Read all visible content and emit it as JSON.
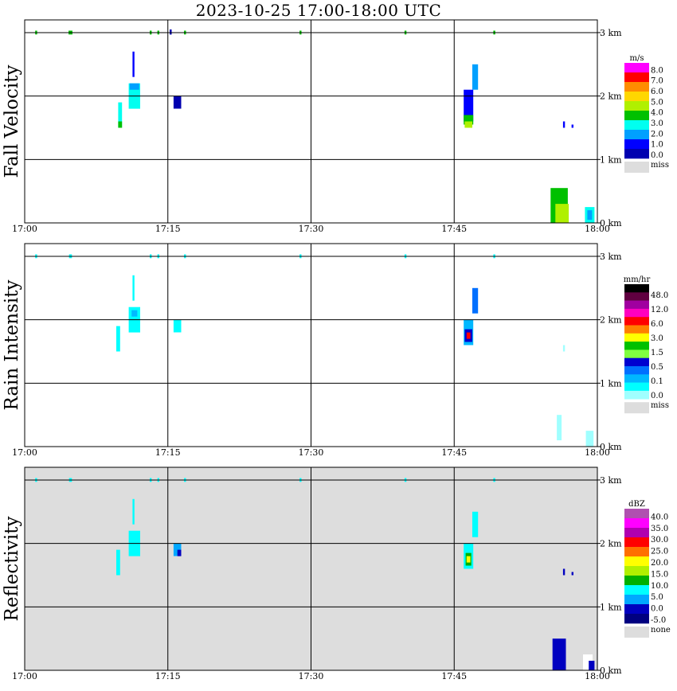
{
  "title": "2023-10-25   17:00-18:00 UTC",
  "chart_data": [
    {
      "type": "heatmap",
      "ylabel": "Fall Velocity",
      "x_range": [
        "17:00",
        "18:00"
      ],
      "x_ticks": [
        "17:00",
        "17:15",
        "17:30",
        "17:45",
        "18:00"
      ],
      "y_range": [
        0,
        3.2
      ],
      "y_ticks": [
        "0 km",
        "1 km",
        "2 km",
        "3 km"
      ],
      "grid": true,
      "background": "#ffffff",
      "colorbar": {
        "unit": "m/s",
        "colors": [
          "#ff00ff",
          "#ff0000",
          "#ff8c00",
          "#ffd700",
          "#b0f000",
          "#00c000",
          "#00fff0",
          "#00a0ff",
          "#0000ff",
          "#0000b0"
        ],
        "labels": [
          "8.0",
          "7.0",
          "6.0",
          "5.0",
          "4.0",
          "3.0",
          "2.0",
          "1.0",
          "0.0"
        ],
        "miss_label": "miss",
        "miss_color": "#dddddd"
      },
      "echoes": [
        {
          "t": 10.0,
          "z1": 1.5,
          "z2": 1.9,
          "w": 0.4,
          "c": "#00fff0"
        },
        {
          "t": 10.0,
          "z1": 1.5,
          "z2": 1.6,
          "w": 0.4,
          "c": "#00c000"
        },
        {
          "t": 11.5,
          "z1": 1.8,
          "z2": 2.2,
          "w": 1.2,
          "c": "#00fff0"
        },
        {
          "t": 11.5,
          "z1": 2.1,
          "z2": 2.2,
          "w": 1.0,
          "c": "#00a0ff"
        },
        {
          "t": 11.4,
          "z1": 2.3,
          "z2": 2.7,
          "w": 0.2,
          "c": "#0000ff"
        },
        {
          "t": 16.0,
          "z1": 1.8,
          "z2": 2.0,
          "w": 0.8,
          "c": "#0000b0"
        },
        {
          "t": 46.5,
          "z1": 1.6,
          "z2": 2.1,
          "w": 1.0,
          "c": "#0000ff"
        },
        {
          "t": 46.5,
          "z1": 1.55,
          "z2": 1.7,
          "w": 1.0,
          "c": "#00c000"
        },
        {
          "t": 46.5,
          "z1": 1.5,
          "z2": 1.6,
          "w": 0.8,
          "c": "#b0f000"
        },
        {
          "t": 47.2,
          "z1": 2.1,
          "z2": 2.5,
          "w": 0.6,
          "c": "#00a0ff"
        },
        {
          "t": 56.0,
          "z1": 0.0,
          "z2": 0.55,
          "w": 1.8,
          "c": "#00c000"
        },
        {
          "t": 56.3,
          "z1": 0.0,
          "z2": 0.3,
          "w": 1.4,
          "c": "#b0f000"
        },
        {
          "t": 59.2,
          "z1": 0.0,
          "z2": 0.25,
          "w": 1.0,
          "c": "#00fff0"
        },
        {
          "t": 59.2,
          "z1": 0.05,
          "z2": 0.2,
          "w": 0.5,
          "c": "#00a0ff"
        },
        {
          "t": 56.5,
          "z1": 1.5,
          "z2": 1.6,
          "w": 0.2,
          "c": "#0000ff"
        },
        {
          "t": 57.4,
          "z1": 1.5,
          "z2": 1.55,
          "w": 0.2,
          "c": "#0000ff"
        },
        {
          "t": 1.2,
          "z1": 2.97,
          "z2": 3.03,
          "w": 0.2,
          "c": "#00c000"
        },
        {
          "t": 4.8,
          "z1": 2.97,
          "z2": 3.03,
          "w": 0.4,
          "c": "#00c000"
        },
        {
          "t": 13.2,
          "z1": 2.97,
          "z2": 3.03,
          "w": 0.2,
          "c": "#00c000"
        },
        {
          "t": 14.0,
          "z1": 2.97,
          "z2": 3.03,
          "w": 0.2,
          "c": "#00c000"
        },
        {
          "t": 15.3,
          "z1": 2.97,
          "z2": 3.05,
          "w": 0.2,
          "c": "#0000b0"
        },
        {
          "t": 16.8,
          "z1": 2.97,
          "z2": 3.03,
          "w": 0.2,
          "c": "#00c000"
        },
        {
          "t": 28.9,
          "z1": 2.97,
          "z2": 3.03,
          "w": 0.2,
          "c": "#00c000"
        },
        {
          "t": 39.9,
          "z1": 2.97,
          "z2": 3.03,
          "w": 0.2,
          "c": "#00c000"
        },
        {
          "t": 49.2,
          "z1": 2.97,
          "z2": 3.03,
          "w": 0.2,
          "c": "#00c000"
        }
      ]
    },
    {
      "type": "heatmap",
      "ylabel": "Rain Intensity",
      "x_range": [
        "17:00",
        "18:00"
      ],
      "x_ticks": [
        "17:00",
        "17:15",
        "17:30",
        "17:45",
        "18:00"
      ],
      "y_range": [
        0,
        3.2
      ],
      "y_ticks": [
        "0 km",
        "1 km",
        "2 km",
        "3 km"
      ],
      "grid": true,
      "background": "#ffffff",
      "colorbar": {
        "unit": "mm/hr",
        "colors": [
          "#000000",
          "#600040",
          "#a000a0",
          "#ff00c0",
          "#ff0000",
          "#ff8000",
          "#ffff00",
          "#00c000",
          "#80ff40",
          "#0000d0",
          "#0070ff",
          "#00b8ff",
          "#00ffff",
          "#a0ffff"
        ],
        "labels": [
          "48.0",
          "12.0",
          "6.0",
          "3.0",
          "1.5",
          "0.5",
          "0.1",
          "0.0"
        ],
        "miss_label": "miss",
        "miss_color": "#dddddd"
      },
      "echoes": [
        {
          "t": 9.8,
          "z1": 1.5,
          "z2": 1.9,
          "w": 0.4,
          "c": "#00ffff"
        },
        {
          "t": 11.5,
          "z1": 1.8,
          "z2": 2.2,
          "w": 1.2,
          "c": "#00ffff"
        },
        {
          "t": 11.5,
          "z1": 2.05,
          "z2": 2.15,
          "w": 0.6,
          "c": "#00b8ff"
        },
        {
          "t": 11.4,
          "z1": 2.3,
          "z2": 2.7,
          "w": 0.2,
          "c": "#00ffff"
        },
        {
          "t": 16.0,
          "z1": 1.8,
          "z2": 2.0,
          "w": 0.8,
          "c": "#00ffff"
        },
        {
          "t": 46.5,
          "z1": 1.6,
          "z2": 2.0,
          "w": 1.0,
          "c": "#00b8ff"
        },
        {
          "t": 46.5,
          "z1": 1.65,
          "z2": 1.85,
          "w": 0.8,
          "c": "#0000d0"
        },
        {
          "t": 46.5,
          "z1": 1.7,
          "z2": 1.8,
          "w": 0.4,
          "c": "#ff0000"
        },
        {
          "t": 47.2,
          "z1": 2.1,
          "z2": 2.5,
          "w": 0.6,
          "c": "#0070ff"
        },
        {
          "t": 56.0,
          "z1": 0.1,
          "z2": 0.5,
          "w": 0.5,
          "c": "#a0ffff"
        },
        {
          "t": 59.2,
          "z1": 0.0,
          "z2": 0.25,
          "w": 0.8,
          "c": "#a0ffff"
        },
        {
          "t": 56.5,
          "z1": 1.5,
          "z2": 1.6,
          "w": 0.2,
          "c": "#a0ffff"
        },
        {
          "t": 1.2,
          "z1": 2.97,
          "z2": 3.03,
          "w": 0.2,
          "c": "#00ffff"
        },
        {
          "t": 4.8,
          "z1": 2.97,
          "z2": 3.03,
          "w": 0.3,
          "c": "#00ffff"
        },
        {
          "t": 13.2,
          "z1": 2.97,
          "z2": 3.03,
          "w": 0.2,
          "c": "#00ffff"
        },
        {
          "t": 14.0,
          "z1": 2.97,
          "z2": 3.03,
          "w": 0.2,
          "c": "#00ffff"
        },
        {
          "t": 16.8,
          "z1": 2.97,
          "z2": 3.03,
          "w": 0.2,
          "c": "#00ffff"
        },
        {
          "t": 28.9,
          "z1": 2.97,
          "z2": 3.03,
          "w": 0.2,
          "c": "#00ffff"
        },
        {
          "t": 39.9,
          "z1": 2.97,
          "z2": 3.03,
          "w": 0.2,
          "c": "#00ffff"
        },
        {
          "t": 49.2,
          "z1": 2.97,
          "z2": 3.03,
          "w": 0.2,
          "c": "#00ffff"
        }
      ]
    },
    {
      "type": "heatmap",
      "ylabel": "Reflectivity",
      "x_range": [
        "17:00",
        "18:00"
      ],
      "x_ticks": [
        "17:00",
        "17:15",
        "17:30",
        "17:45",
        "18:00"
      ],
      "y_range": [
        0,
        3.2
      ],
      "y_ticks": [
        "0 km",
        "1 km",
        "2 km",
        "3 km"
      ],
      "grid": true,
      "background": "#dddddd",
      "colorbar": {
        "unit": "dBZ",
        "colors": [
          "#b050b0",
          "#ff00ff",
          "#b000b0",
          "#ff0000",
          "#ff7000",
          "#ffff00",
          "#b0f000",
          "#00b000",
          "#00ffff",
          "#00a8ff",
          "#0000c0",
          "#000080"
        ],
        "labels": [
          "40.0",
          "35.0",
          "30.0",
          "25.0",
          "20.0",
          "15.0",
          "10.0",
          "5.0",
          "0.0",
          "-5.0"
        ],
        "miss_label": "none",
        "miss_color": "#dddddd"
      },
      "echoes": [
        {
          "t": 9.8,
          "z1": 1.5,
          "z2": 1.9,
          "w": 0.4,
          "c": "#00ffff"
        },
        {
          "t": 11.5,
          "z1": 1.8,
          "z2": 2.2,
          "w": 1.2,
          "c": "#00ffff"
        },
        {
          "t": 11.4,
          "z1": 2.3,
          "z2": 2.7,
          "w": 0.2,
          "c": "#00ffff"
        },
        {
          "t": 16.0,
          "z1": 1.8,
          "z2": 2.0,
          "w": 0.8,
          "c": "#00a8ff"
        },
        {
          "t": 16.2,
          "z1": 1.8,
          "z2": 1.9,
          "w": 0.4,
          "c": "#0000c0"
        },
        {
          "t": 46.5,
          "z1": 1.6,
          "z2": 2.0,
          "w": 1.0,
          "c": "#00ffff"
        },
        {
          "t": 46.5,
          "z1": 1.65,
          "z2": 1.85,
          "w": 0.6,
          "c": "#00b000"
        },
        {
          "t": 46.5,
          "z1": 1.7,
          "z2": 1.8,
          "w": 0.4,
          "c": "#ffff00"
        },
        {
          "t": 47.2,
          "z1": 2.1,
          "z2": 2.5,
          "w": 0.6,
          "c": "#00ffff"
        },
        {
          "t": 56.0,
          "z1": 0.0,
          "z2": 0.5,
          "w": 1.4,
          "c": "#0000c0"
        },
        {
          "t": 59.0,
          "z1": 0.0,
          "z2": 0.25,
          "w": 1.0,
          "c": "#ffffff"
        },
        {
          "t": 59.4,
          "z1": 0.0,
          "z2": 0.15,
          "w": 0.6,
          "c": "#0000c0"
        },
        {
          "t": 56.5,
          "z1": 1.5,
          "z2": 1.6,
          "w": 0.2,
          "c": "#0000c0"
        },
        {
          "t": 57.4,
          "z1": 1.5,
          "z2": 1.55,
          "w": 0.2,
          "c": "#0000c0"
        },
        {
          "t": 1.2,
          "z1": 2.97,
          "z2": 3.03,
          "w": 0.2,
          "c": "#00ffff"
        },
        {
          "t": 4.8,
          "z1": 2.97,
          "z2": 3.03,
          "w": 0.3,
          "c": "#00ffff"
        },
        {
          "t": 13.2,
          "z1": 2.97,
          "z2": 3.03,
          "w": 0.2,
          "c": "#00ffff"
        },
        {
          "t": 14.0,
          "z1": 2.97,
          "z2": 3.03,
          "w": 0.2,
          "c": "#00ffff"
        },
        {
          "t": 16.8,
          "z1": 2.97,
          "z2": 3.03,
          "w": 0.2,
          "c": "#00ffff"
        },
        {
          "t": 28.9,
          "z1": 2.97,
          "z2": 3.03,
          "w": 0.2,
          "c": "#00ffff"
        },
        {
          "t": 39.9,
          "z1": 2.97,
          "z2": 3.03,
          "w": 0.2,
          "c": "#00ffff"
        },
        {
          "t": 49.2,
          "z1": 2.97,
          "z2": 3.03,
          "w": 0.2,
          "c": "#00ffff"
        }
      ]
    }
  ]
}
